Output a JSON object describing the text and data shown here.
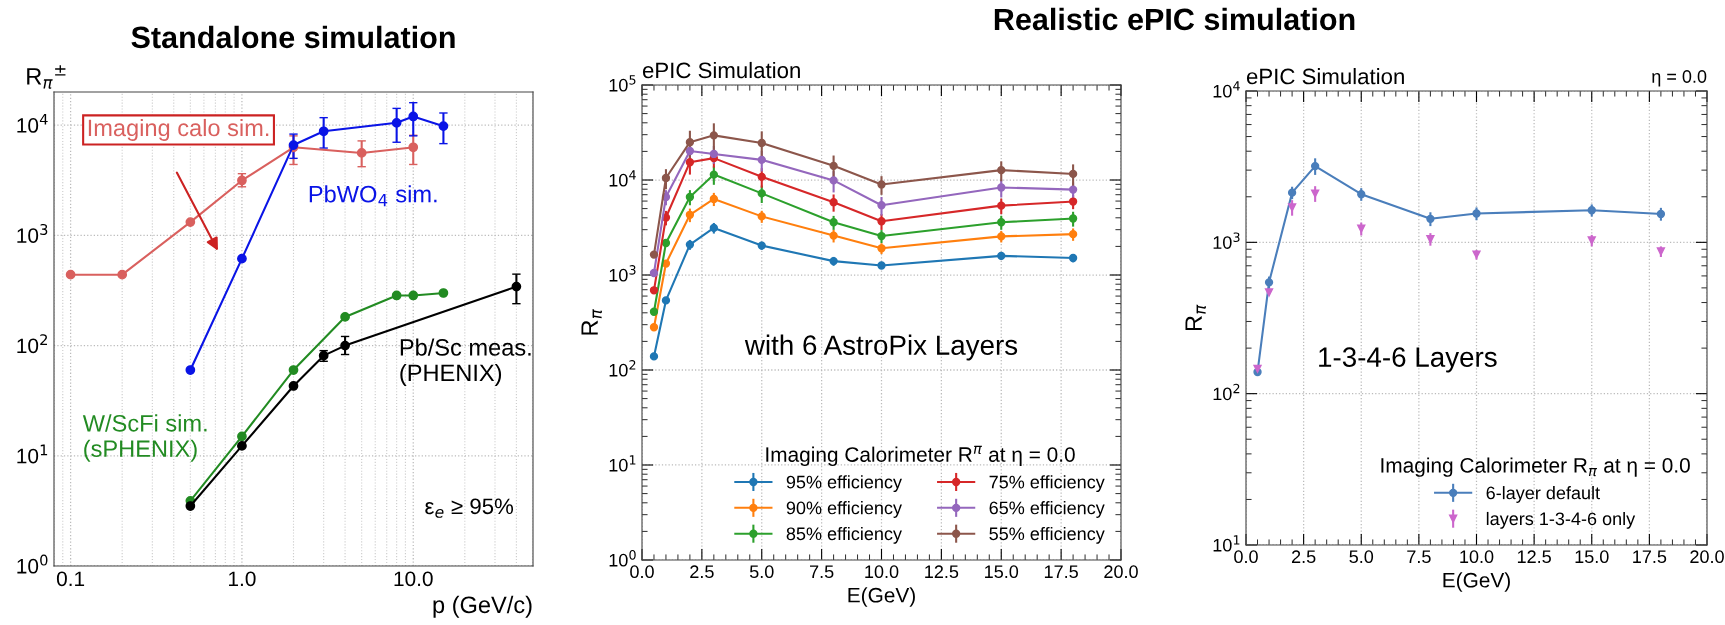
{
  "chart_data": [
    {
      "type": "line",
      "title": "Standalone simulation",
      "ylabel": "R$_{π}$$^{±}$",
      "xlabel": "p (GeV/c)",
      "log": "xy",
      "grid": true,
      "legend": false,
      "marker": "circle",
      "xlim": [
        0.08,
        50
      ],
      "ylim": [
        1,
        20000
      ],
      "xticks": [
        {
          "value": 0.1,
          "label": "0.1"
        },
        {
          "value": 1,
          "label": "1.0"
        },
        {
          "value": 10,
          "label": "10.0"
        }
      ],
      "yticks": [
        {
          "value": 1,
          "label": "10$^{0}$"
        },
        {
          "value": 10,
          "label": "10$^{1}$"
        },
        {
          "value": 100,
          "label": "10$^{2}$"
        },
        {
          "value": 1000,
          "label": "10$^{3}$"
        },
        {
          "value": 10000,
          "label": "10$^{4}$"
        }
      ],
      "annotations": [
        "ε$_{e}$ ≥ 95%"
      ],
      "series": [
        {
          "name": "Imaging calo sim.",
          "color": "#d9605e",
          "x": [
            0.1,
            0.2,
            0.5,
            1.0,
            2.0,
            5.0,
            10.0
          ],
          "values": [
            440,
            440,
            1320,
            3150,
            6300,
            5600,
            6300
          ],
          "errors": [
            null,
            null,
            null,
            [
              2760,
              3630
            ],
            [
              4400,
              8000
            ],
            [
              4200,
              7200
            ],
            [
              4400,
              8100
            ]
          ]
        },
        {
          "name": "PbWO$_{4}$ sim.",
          "color": "#0a14e6",
          "x": [
            0.5,
            1.0,
            2.0,
            3.0,
            8.0,
            10.0,
            15.0
          ],
          "values": [
            60,
            615,
            6600,
            8800,
            10500,
            12000,
            9800
          ],
          "errors": [
            null,
            null,
            [
              5000,
              8300
            ],
            [
              6200,
              11700
            ],
            [
              7000,
              14200
            ],
            [
              8000,
              16000
            ],
            [
              6800,
              12900
            ]
          ]
        },
        {
          "name": "W/ScFi sim.\n(sPHENIX)",
          "color": "#228b22",
          "x": [
            0.5,
            1.0,
            2.0,
            4.0,
            8.0,
            10.0,
            15.0
          ],
          "values": [
            3.9,
            15,
            60,
            182,
            285,
            285,
            300
          ]
        },
        {
          "name": "Pb/Sc meas.\n(PHENIX)",
          "color": "#000000",
          "x": [
            0.5,
            1.0,
            2.0,
            3.0,
            4.0,
            40.0
          ],
          "values": [
            3.5,
            12.3,
            43,
            81,
            100,
            343
          ],
          "errors": [
            null,
            null,
            null,
            [
              72,
              90
            ],
            [
              83,
              121
            ],
            [
              240,
              445
            ]
          ]
        }
      ]
    },
    {
      "type": "line",
      "title": "Realistic ePIC simulation",
      "subtitle": "ePIC Simulation",
      "ylabel": "R$_{π}$",
      "xlabel": "E(GeV)",
      "log": true,
      "grid": true,
      "legend": "bottom right",
      "legend_title": "Imaging Calorimeter R$^{π}$ at η = 0.0",
      "marker": "circle",
      "xlim": [
        0,
        20
      ],
      "ylim": [
        1,
        100000
      ],
      "xticks": [
        {
          "value": 0,
          "label": "0.0"
        },
        {
          "value": 2.5,
          "label": "2.5"
        },
        {
          "value": 5,
          "label": "5.0"
        },
        {
          "value": 7.5,
          "label": "7.5"
        },
        {
          "value": 10,
          "label": "10.0"
        },
        {
          "value": 12.5,
          "label": "12.5"
        },
        {
          "value": 15,
          "label": "15.0"
        },
        {
          "value": 17.5,
          "label": "17.5"
        },
        {
          "value": 20,
          "label": "20.0"
        }
      ],
      "yticks": [
        {
          "value": 1,
          "label": "10$^{0}$"
        },
        {
          "value": 10,
          "label": "10$^{1}$"
        },
        {
          "value": 100,
          "label": "10$^{2}$"
        },
        {
          "value": 1000,
          "label": "10$^{3}$"
        },
        {
          "value": 10000,
          "label": "10$^{4}$"
        },
        {
          "value": 100000,
          "label": "10$^{5}$"
        }
      ],
      "x": [
        0.5,
        1,
        2,
        3,
        5,
        8,
        10,
        15,
        18
      ],
      "annotations": [
        "with 6 AstroPix Layers"
      ],
      "series": [
        {
          "name": "95% efficiency",
          "color": "#1f77b4",
          "values": [
            139,
            540,
            2090,
            3130,
            2040,
            1400,
            1260,
            1590,
            1510
          ],
          "errors": [
            null,
            null,
            250,
            400,
            200,
            150,
            100,
            150,
            150
          ]
        },
        {
          "name": "90% efficiency",
          "color": "#ff7f0e",
          "values": [
            282,
            1320,
            4300,
            6320,
            4140,
            2600,
            1910,
            2550,
            2690
          ],
          "errors": [
            null,
            null,
            700,
            1000,
            600,
            400,
            250,
            350,
            400
          ]
        },
        {
          "name": "85% efficiency",
          "color": "#2ca02c",
          "values": [
            410,
            2170,
            6620,
            11400,
            7230,
            3590,
            2570,
            3590,
            3930
          ],
          "errors": [
            null,
            null,
            1200,
            2500,
            1500,
            600,
            400,
            600,
            700
          ]
        },
        {
          "name": "75% efficiency",
          "color": "#d62728",
          "values": [
            690,
            4030,
            15400,
            17000,
            10800,
            5840,
            3680,
            5370,
            5930
          ],
          "errors": [
            null,
            700,
            4000,
            3500,
            2500,
            1200,
            700,
            1000,
            1000
          ]
        },
        {
          "name": "65% efficiency",
          "color": "#9467bd",
          "values": [
            1050,
            6620,
            20200,
            18800,
            16300,
            9900,
            5420,
            8350,
            7920
          ],
          "errors": [
            null,
            1200,
            3000,
            4000,
            4000,
            2500,
            1200,
            1800,
            1500
          ]
        },
        {
          "name": "55% efficiency",
          "color": "#8c564b",
          "values": [
            1640,
            10500,
            25000,
            29500,
            24500,
            14100,
            8980,
            12700,
            11600
          ],
          "errors": [
            null,
            2500,
            8000,
            10000,
            8000,
            4000,
            2000,
            3000,
            3000
          ]
        }
      ]
    },
    {
      "type": "line",
      "subtitle": "ePIC Simulation",
      "ylabel": "R$_{π}$",
      "xlabel": "E(GeV)",
      "log": true,
      "grid": true,
      "legend": "bottom right",
      "legend_title": "Imaging Calorimeter R$_{π}$ at η = 0.0",
      "xlim": [
        0,
        20
      ],
      "ylim": [
        10,
        10000
      ],
      "xticks": [
        {
          "value": 0,
          "label": "0.0"
        },
        {
          "value": 2.5,
          "label": "2.5"
        },
        {
          "value": 5,
          "label": "5.0"
        },
        {
          "value": 7.5,
          "label": "7.5"
        },
        {
          "value": 10,
          "label": "10.0"
        },
        {
          "value": 12.5,
          "label": "12.5"
        },
        {
          "value": 15,
          "label": "15.0"
        },
        {
          "value": 17.5,
          "label": "17.5"
        },
        {
          "value": 20,
          "label": "20.0"
        }
      ],
      "yticks": [
        {
          "value": 10,
          "label": "10$^{1}$"
        },
        {
          "value": 100,
          "label": "10$^{2}$"
        },
        {
          "value": 1000,
          "label": "10$^{3}$"
        },
        {
          "value": 10000,
          "label": "10$^{4}$"
        }
      ],
      "x": [
        0.5,
        1,
        2,
        3,
        5,
        8,
        10,
        15,
        18
      ],
      "annotations": [
        "1-3-4-6 Layers",
        "η = 0.0"
      ],
      "series": [
        {
          "name": "6-layer default",
          "color": "#4a7ebb",
          "marker": "circle",
          "values": [
            139,
            544,
            2130,
            3190,
            2080,
            1430,
            1550,
            1630,
            1540
          ],
          "errors": [
            null,
            50,
            200,
            400,
            200,
            150,
            150,
            150,
            150
          ]
        },
        {
          "name": "layers 1-3-4-6 only",
          "type": "scatter",
          "color": "#cc66cc",
          "marker": "triangle",
          "values": [
            146,
            467,
            1700,
            2100,
            1230,
            1050,
            830,
            1030,
            870
          ],
          "errors": [
            null,
            null,
            200,
            250,
            120,
            100,
            60,
            90,
            70
          ]
        }
      ]
    }
  ]
}
